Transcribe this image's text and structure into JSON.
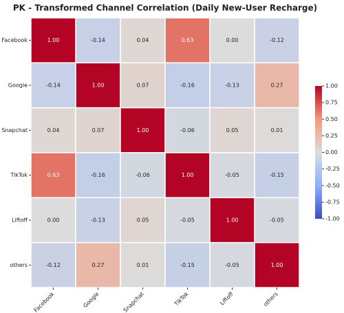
{
  "chart_data": {
    "type": "heatmap",
    "title": "PK - Transformed Channel Correlation (Daily New-User Recharge)",
    "x": [
      "Facebook",
      "Google",
      "Snapchat",
      "TikTok",
      "Liftoff",
      "others"
    ],
    "y": [
      "Facebook",
      "Google",
      "Snapchat",
      "TikTok",
      "Liftoff",
      "others"
    ],
    "values": [
      [
        1,
        -0.14,
        0.04,
        0.63,
        0,
        -0.12
      ],
      [
        -0.14,
        1,
        0.07,
        -0.16,
        -0.13,
        0.27
      ],
      [
        0.04,
        0.07,
        1,
        -0.06,
        0.05,
        0.01
      ],
      [
        0.63,
        -0.16,
        -0.06,
        1,
        -0.05,
        -0.15
      ],
      [
        0,
        -0.13,
        0.05,
        -0.05,
        1,
        -0.05
      ],
      [
        -0.12,
        0.27,
        0.01,
        -0.15,
        -0.05,
        1
      ]
    ],
    "value_labels": [
      [
        "1.00",
        "-0.14",
        "0.04",
        "0.63",
        "0.00",
        "-0.12"
      ],
      [
        "-0.14",
        "1.00",
        "0.07",
        "-0.16",
        "-0.13",
        "0.27"
      ],
      [
        "0.04",
        "0.07",
        "1.00",
        "-0.06",
        "0.05",
        "0.01"
      ],
      [
        "0.63",
        "-0.16",
        "-0.06",
        "1.00",
        "-0.05",
        "-0.15"
      ],
      [
        "0.00",
        "-0.13",
        "0.05",
        "-0.05",
        "1.00",
        "-0.05"
      ],
      [
        "-0.12",
        "0.27",
        "0.01",
        "-0.15",
        "-0.05",
        "1.00"
      ]
    ],
    "colormap": "coolwarm",
    "clim": [
      -1,
      1
    ],
    "cticks": [
      {
        "value": 1,
        "label": "1.00"
      },
      {
        "value": 0.75,
        "label": "0.75"
      },
      {
        "value": 0.5,
        "label": "0.50"
      },
      {
        "value": 0.25,
        "label": "0.25"
      },
      {
        "value": 0,
        "label": "0.00"
      },
      {
        "value": -0.25,
        "label": "-0.25"
      },
      {
        "value": -0.5,
        "label": "-0.50"
      },
      {
        "value": -0.75,
        "label": "-0.75"
      },
      {
        "value": -1,
        "label": "-1.00"
      }
    ]
  }
}
